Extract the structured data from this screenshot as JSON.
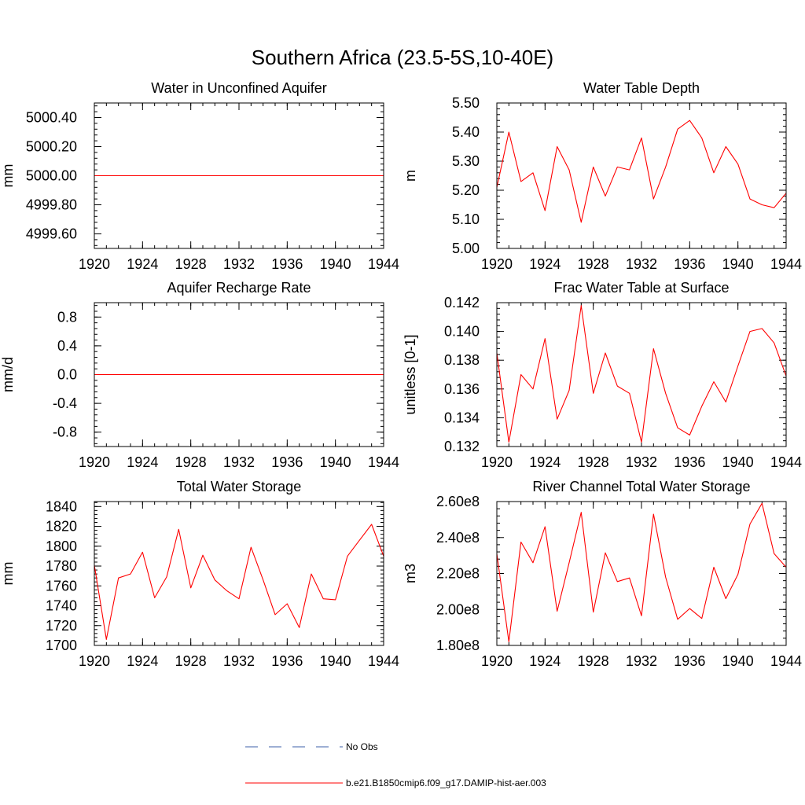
{
  "figure": {
    "title": "Southern Africa (23.5-5S,10-40E)"
  },
  "legend": [
    {
      "label": "No Obs",
      "color": "#3d5fa8",
      "dash": true
    },
    {
      "label": "b.e21.B1850cmip6.f09_g17.DAMIP-hist-aer.003",
      "color": "#ff0000",
      "dash": false
    }
  ],
  "chart_data": [
    {
      "type": "line",
      "title": "Water in Unconfined Aquifer",
      "ylabel": "mm",
      "xlim": [
        1920,
        1944
      ],
      "ylim": [
        4999.5,
        5000.5
      ],
      "xticks": [
        1920,
        1924,
        1928,
        1932,
        1936,
        1940,
        1944
      ],
      "xtick_labels": [
        "1920",
        "1924",
        "1928",
        "1932",
        "1936",
        "1940",
        "1944"
      ],
      "yticks": [
        4999.6,
        4999.8,
        5000.0,
        5000.2,
        5000.4
      ],
      "ytick_labels": [
        "4999.60",
        "4999.80",
        "5000.00",
        "5000.20",
        "5000.40"
      ],
      "series": [
        {
          "color": "#ff0000",
          "x": [
            1920,
            1944
          ],
          "y": [
            5000.0,
            5000.0
          ]
        }
      ]
    },
    {
      "type": "line",
      "title": "Water Table Depth",
      "ylabel": "m",
      "xlim": [
        1920,
        1944
      ],
      "ylim": [
        5.0,
        5.5
      ],
      "xticks": [
        1920,
        1924,
        1928,
        1932,
        1936,
        1940,
        1944
      ],
      "xtick_labels": [
        "1920",
        "1924",
        "1928",
        "1932",
        "1936",
        "1940",
        "1944"
      ],
      "yticks": [
        5.0,
        5.1,
        5.2,
        5.3,
        5.4,
        5.5
      ],
      "ytick_labels": [
        "5.00",
        "5.10",
        "5.20",
        "5.30",
        "5.40",
        "5.50"
      ],
      "series": [
        {
          "color": "#ff0000",
          "x": [
            1920,
            1921,
            1922,
            1923,
            1924,
            1925,
            1926,
            1927,
            1928,
            1929,
            1930,
            1931,
            1932,
            1933,
            1934,
            1935,
            1936,
            1937,
            1938,
            1939,
            1940,
            1941,
            1942,
            1943,
            1944
          ],
          "y": [
            5.21,
            5.4,
            5.23,
            5.26,
            5.13,
            5.35,
            5.27,
            5.09,
            5.28,
            5.18,
            5.28,
            5.27,
            5.38,
            5.17,
            5.28,
            5.41,
            5.44,
            5.38,
            5.26,
            5.35,
            5.29,
            5.17,
            5.15,
            5.14,
            5.19
          ]
        }
      ]
    },
    {
      "type": "line",
      "title": "Aquifer Recharge Rate",
      "ylabel": "mm/d",
      "xlim": [
        1920,
        1944
      ],
      "ylim": [
        -1.0,
        1.0
      ],
      "xticks": [
        1920,
        1924,
        1928,
        1932,
        1936,
        1940,
        1944
      ],
      "xtick_labels": [
        "1920",
        "1924",
        "1928",
        "1932",
        "1936",
        "1940",
        "1944"
      ],
      "yticks": [
        -0.8,
        -0.4,
        0.0,
        0.4,
        0.8
      ],
      "ytick_labels": [
        "-0.8",
        "-0.4",
        "0.0",
        "0.4",
        "0.8"
      ],
      "series": [
        {
          "color": "#ff0000",
          "x": [
            1920,
            1944
          ],
          "y": [
            0.0,
            0.0
          ]
        }
      ]
    },
    {
      "type": "line",
      "title": "Frac Water Table at Surface",
      "ylabel": "unitless [0-1]",
      "xlim": [
        1920,
        1944
      ],
      "ylim": [
        0.132,
        0.142
      ],
      "xticks": [
        1920,
        1924,
        1928,
        1932,
        1936,
        1940,
        1944
      ],
      "xtick_labels": [
        "1920",
        "1924",
        "1928",
        "1932",
        "1936",
        "1940",
        "1944"
      ],
      "yticks": [
        0.132,
        0.134,
        0.136,
        0.138,
        0.14,
        0.142
      ],
      "ytick_labels": [
        "0.132",
        "0.134",
        "0.136",
        "0.138",
        "0.140",
        "0.142"
      ],
      "series": [
        {
          "color": "#ff0000",
          "x": [
            1920,
            1921,
            1922,
            1923,
            1924,
            1925,
            1926,
            1927,
            1928,
            1929,
            1930,
            1931,
            1932,
            1933,
            1934,
            1935,
            1936,
            1937,
            1938,
            1939,
            1940,
            1941,
            1942,
            1943,
            1944
          ],
          "y": [
            0.1385,
            0.1323,
            0.137,
            0.136,
            0.1395,
            0.1339,
            0.1359,
            0.1418,
            0.1357,
            0.1385,
            0.1362,
            0.1357,
            0.1323,
            0.1388,
            0.1357,
            0.1333,
            0.1328,
            0.1348,
            0.1365,
            0.1351,
            0.1376,
            0.14,
            0.1402,
            0.1392,
            0.1369
          ]
        }
      ]
    },
    {
      "type": "line",
      "title": "Total Water Storage",
      "ylabel": "mm",
      "xlim": [
        1920,
        1944
      ],
      "ylim": [
        1700,
        1845
      ],
      "xticks": [
        1920,
        1924,
        1928,
        1932,
        1936,
        1940,
        1944
      ],
      "xtick_labels": [
        "1920",
        "1924",
        "1928",
        "1932",
        "1936",
        "1940",
        "1944"
      ],
      "yticks": [
        1700,
        1720,
        1740,
        1760,
        1780,
        1800,
        1820,
        1840
      ],
      "ytick_labels": [
        "1700",
        "1720",
        "1740",
        "1760",
        "1780",
        "1800",
        "1820",
        "1840"
      ],
      "series": [
        {
          "color": "#ff0000",
          "x": [
            1920,
            1921,
            1922,
            1923,
            1924,
            1925,
            1926,
            1927,
            1928,
            1929,
            1930,
            1931,
            1932,
            1933,
            1934,
            1935,
            1936,
            1937,
            1938,
            1939,
            1940,
            1941,
            1942,
            1943,
            1944
          ],
          "y": [
            1781,
            1706,
            1768,
            1772,
            1794,
            1748,
            1769,
            1817,
            1758,
            1791,
            1766,
            1755,
            1747,
            1799,
            1766,
            1731,
            1742,
            1718,
            1772,
            1747,
            1746,
            1790,
            1806,
            1822,
            1790
          ]
        }
      ]
    },
    {
      "type": "line",
      "title": "River Channel Total Water Storage",
      "ylabel": "m3",
      "xlim": [
        1920,
        1944
      ],
      "ylim": [
        180000000,
        260000000
      ],
      "xticks": [
        1920,
        1924,
        1928,
        1932,
        1936,
        1940,
        1944
      ],
      "xtick_labels": [
        "1920",
        "1924",
        "1928",
        "1932",
        "1936",
        "1940",
        "1944"
      ],
      "yticks": [
        180000000,
        200000000,
        220000000,
        240000000,
        260000000
      ],
      "ytick_labels": [
        "1.80e8",
        "2.00e8",
        "2.20e8",
        "2.40e8",
        "2.60e8"
      ],
      "series": [
        {
          "color": "#ff0000",
          "x": [
            1920,
            1921,
            1922,
            1923,
            1924,
            1925,
            1926,
            1927,
            1928,
            1929,
            1930,
            1931,
            1932,
            1933,
            1934,
            1935,
            1936,
            1937,
            1938,
            1939,
            1940,
            1941,
            1942,
            1943,
            1944
          ],
          "y": [
            231000000,
            182000000,
            237500000,
            226000000,
            246000000,
            199000000,
            226000000,
            254000000,
            198500000,
            231500000,
            215500000,
            217500000,
            196500000,
            253000000,
            218000000,
            194500000,
            200500000,
            195000000,
            223500000,
            206000000,
            219500000,
            247500000,
            259000000,
            231000000,
            223500000
          ]
        }
      ]
    }
  ]
}
